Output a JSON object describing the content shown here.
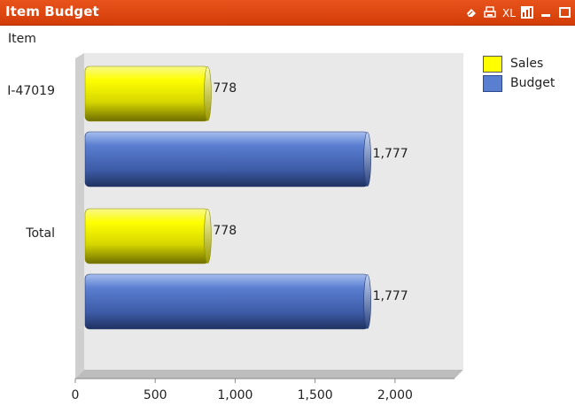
{
  "header": {
    "title": "Item Budget",
    "icons": [
      "eraser-icon",
      "print-icon",
      "excel-export-icon",
      "chart-type-icon",
      "minimize-icon",
      "maximize-icon"
    ],
    "excel_label": "XL",
    "background": "#d94110"
  },
  "dimension_label": "Item",
  "chart_data": {
    "type": "bar",
    "orientation": "horizontal",
    "categories": [
      "I-47019",
      "Total"
    ],
    "series": [
      {
        "name": "Sales",
        "values": [
          778,
          778
        ],
        "color": "#ffff00"
      },
      {
        "name": "Budget",
        "values": [
          1777,
          1777
        ],
        "color": "#5a7ed0"
      }
    ],
    "data_labels": [
      [
        "778",
        "1,777"
      ],
      [
        "778",
        "1,777"
      ]
    ],
    "x_ticks": [
      "0",
      "500",
      "1,000",
      "1,500",
      "2,000"
    ],
    "x_tick_values": [
      0,
      500,
      1000,
      1500,
      2000
    ],
    "xlim": [
      0,
      2300
    ],
    "legend_position": "top-right",
    "grid": false
  }
}
